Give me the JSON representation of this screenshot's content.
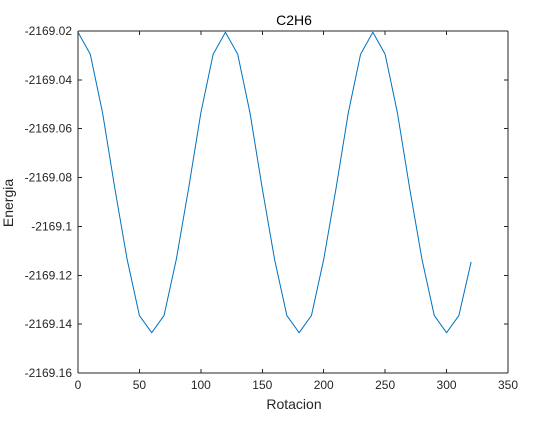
{
  "chart_data": {
    "type": "line",
    "title": "C2H6",
    "xlabel": "Rotacion",
    "ylabel": "Energia",
    "xlim": [
      0,
      350
    ],
    "ylim": [
      -2169.16,
      -2169.02
    ],
    "xticks": [
      "0",
      "50",
      "100",
      "150",
      "200",
      "250",
      "300",
      "350"
    ],
    "yticks": [
      "-2169.02",
      "-2169.04",
      "-2169.06",
      "-2169.08",
      "-2169.1",
      "-2169.12",
      "-2169.14",
      "-2169.16"
    ],
    "grid": false,
    "line_color": "#0072bd",
    "series": [
      {
        "x": [
          0,
          10,
          20,
          30,
          40,
          50,
          60,
          70,
          80,
          90,
          100,
          110,
          120,
          130,
          140,
          150,
          160,
          170,
          180,
          190,
          200,
          210,
          220,
          230,
          240,
          250,
          260,
          270,
          280,
          290,
          300,
          310,
          320
        ],
        "values": [
          -2169.0205,
          -2169.0295,
          -2169.0535,
          -2169.0845,
          -2169.1135,
          -2169.1365,
          -2169.1435,
          -2169.1365,
          -2169.1135,
          -2169.0845,
          -2169.0535,
          -2169.0295,
          -2169.0205,
          -2169.0295,
          -2169.0535,
          -2169.0845,
          -2169.1135,
          -2169.1365,
          -2169.1435,
          -2169.1365,
          -2169.1135,
          -2169.0845,
          -2169.0535,
          -2169.0295,
          -2169.0205,
          -2169.0295,
          -2169.0535,
          -2169.0845,
          -2169.1135,
          -2169.1365,
          -2169.1435,
          -2169.1365,
          -2169.1145
        ]
      }
    ]
  }
}
